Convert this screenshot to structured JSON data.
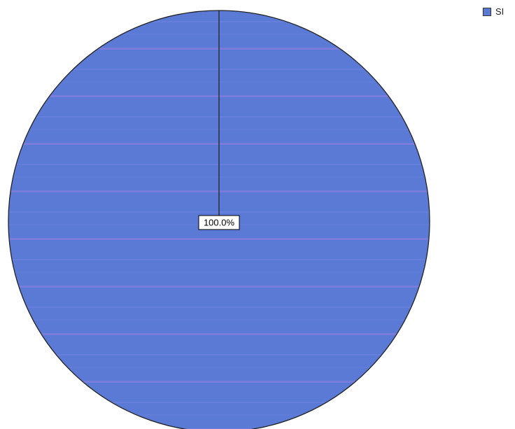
{
  "chart_data": {
    "type": "pie",
    "slices": [
      {
        "name": "SI",
        "value": 100.0,
        "label": "100.0%"
      }
    ],
    "title": "",
    "legend_position": "top-right",
    "colors": {
      "slice": "#5a7ad6",
      "outline": "#222222",
      "background": "#ffffff"
    }
  },
  "legend": {
    "items": [
      {
        "label": "SI",
        "color": "#5a7ad6"
      }
    ]
  }
}
